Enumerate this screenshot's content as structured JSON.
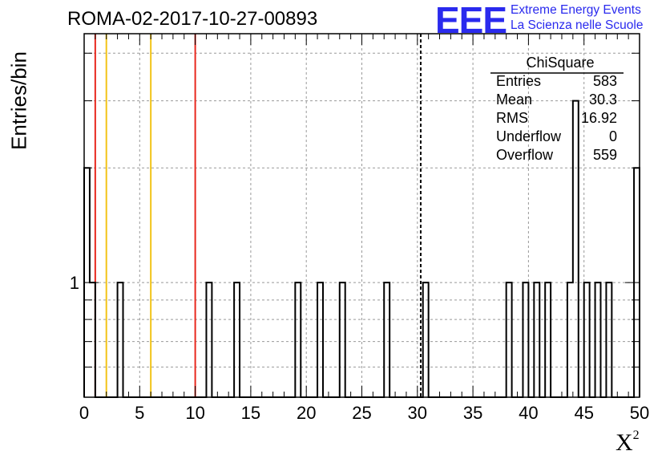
{
  "header": {
    "run_title": "ROMA-02-2017-10-27-00893",
    "logo_mark": "EEE",
    "logo_line1": "Extreme Energy Events",
    "logo_line2": "La Scienza nelle Scuole"
  },
  "stats_box": {
    "title": "ChiSquare",
    "rows": [
      {
        "key": "Entries",
        "value": "583"
      },
      {
        "key": "Mean",
        "value": "30.3"
      },
      {
        "key": "RMS",
        "value": "16.92"
      },
      {
        "key": "Underflow",
        "value": "0"
      },
      {
        "key": "Overflow",
        "value": "559"
      }
    ]
  },
  "chart_data": {
    "type": "histogram",
    "title": "ROMA-02-2017-10-27-00893",
    "xlabel": "X²",
    "ylabel": "Entries/bin",
    "xlim": [
      0,
      50
    ],
    "ylim": [
      0.5,
      4.5
    ],
    "y_scale": "log",
    "bin_width": 0.5,
    "bins": [
      {
        "x": 0.0,
        "count": 2
      },
      {
        "x": 0.5,
        "count": 1
      },
      {
        "x": 3.0,
        "count": 1
      },
      {
        "x": 11.0,
        "count": 1
      },
      {
        "x": 13.5,
        "count": 1
      },
      {
        "x": 19.0,
        "count": 1
      },
      {
        "x": 21.0,
        "count": 1
      },
      {
        "x": 23.0,
        "count": 1
      },
      {
        "x": 27.0,
        "count": 1
      },
      {
        "x": 30.5,
        "count": 1
      },
      {
        "x": 38.0,
        "count": 1
      },
      {
        "x": 39.5,
        "count": 1
      },
      {
        "x": 40.5,
        "count": 1
      },
      {
        "x": 41.5,
        "count": 1
      },
      {
        "x": 43.5,
        "count": 1
      },
      {
        "x": 44.0,
        "count": 3
      },
      {
        "x": 45.0,
        "count": 1
      },
      {
        "x": 46.0,
        "count": 1
      },
      {
        "x": 47.0,
        "count": 1
      },
      {
        "x": 49.5,
        "count": 2
      }
    ],
    "x_ticks": [
      0,
      5,
      10,
      15,
      20,
      25,
      30,
      35,
      40,
      45,
      50
    ],
    "y_tick_labels": [
      {
        "y": 1,
        "label": "1"
      }
    ],
    "vertical_lines": [
      {
        "x": 1.0,
        "color": "#e8281e",
        "style": "solid"
      },
      {
        "x": 2.0,
        "color": "#f2c418",
        "style": "solid"
      },
      {
        "x": 6.0,
        "color": "#f2c418",
        "style": "solid"
      },
      {
        "x": 10.0,
        "color": "#e8281e",
        "style": "solid"
      },
      {
        "x": 30.3,
        "color": "#000000",
        "style": "dashed"
      }
    ],
    "grid": true,
    "line_color": "#000000"
  }
}
